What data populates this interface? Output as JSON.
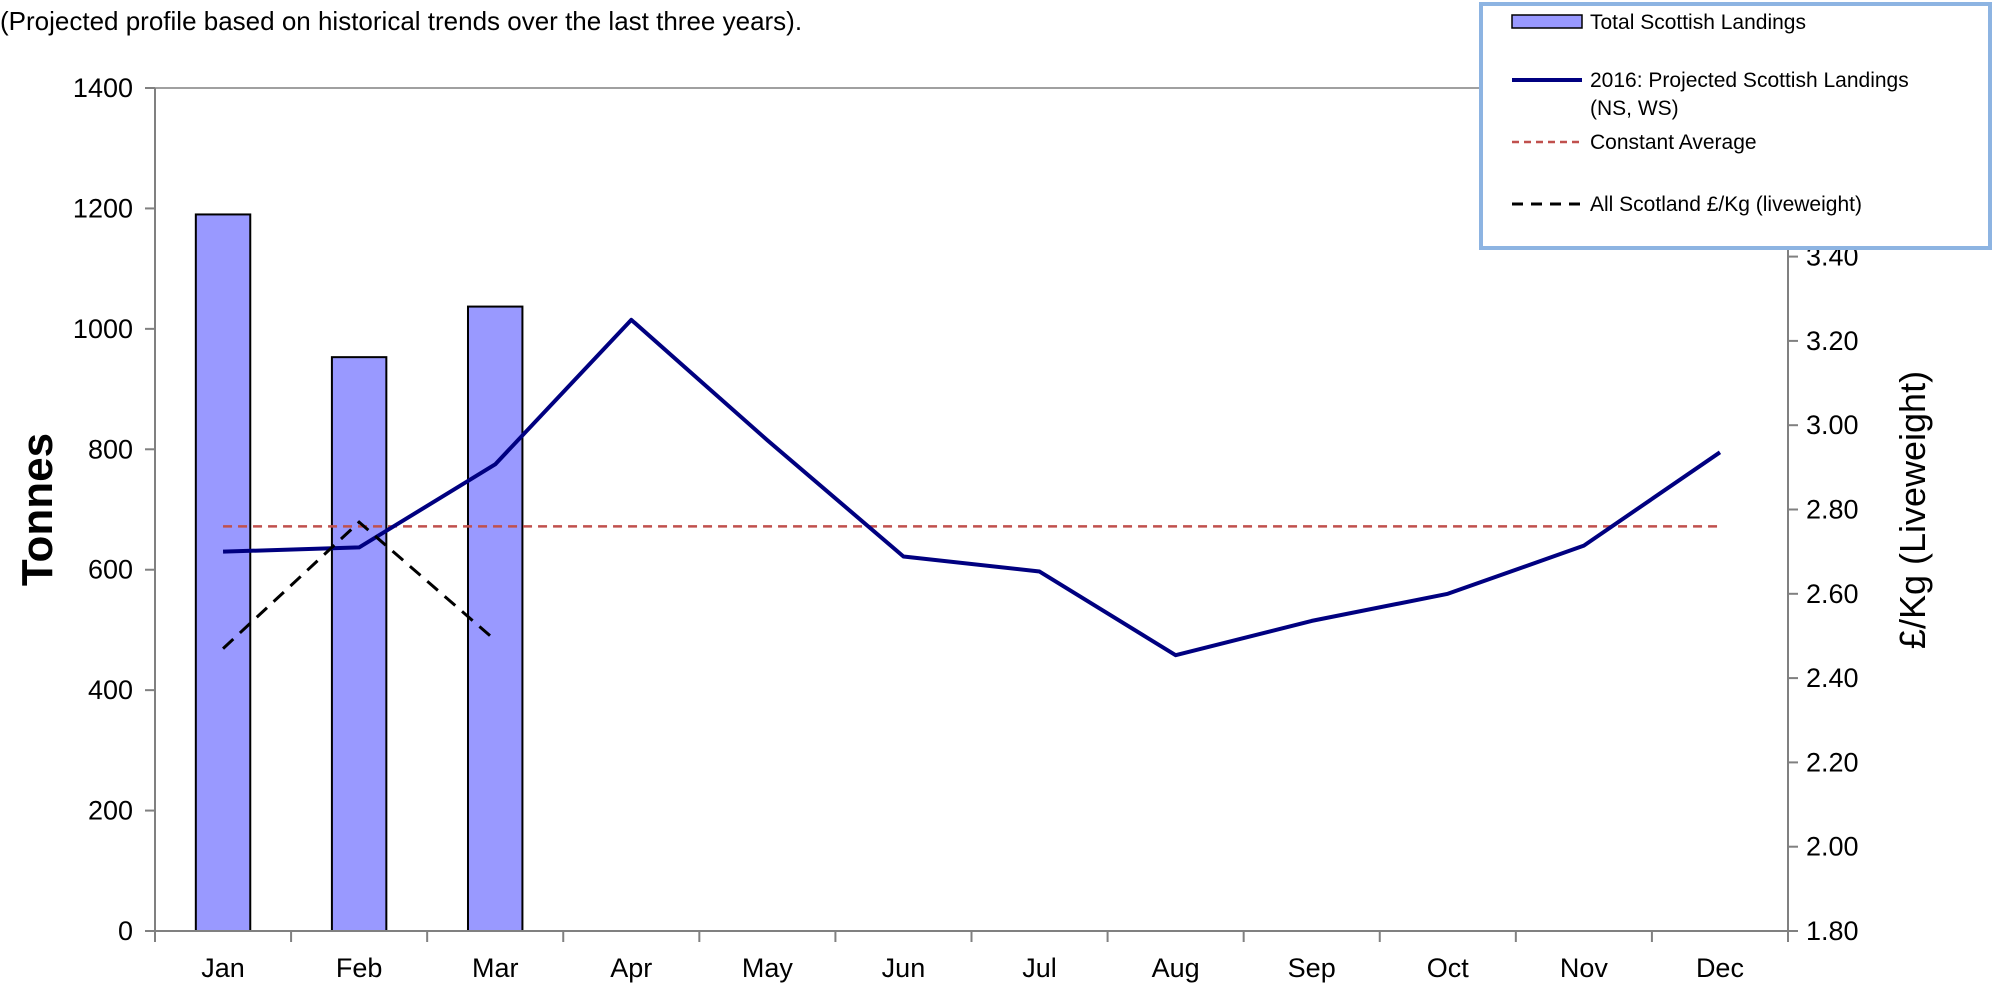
{
  "subtitle": "(Projected profile based on historical trends over the last three years).",
  "chart_data": {
    "type": "bar",
    "title": "",
    "subtitle": "(Projected profile based on historical trends over the last three years).",
    "categories": [
      "Jan",
      "Feb",
      "Mar",
      "Apr",
      "May",
      "Jun",
      "Jul",
      "Aug",
      "Sep",
      "Oct",
      "Nov",
      "Dec"
    ],
    "y_left": {
      "label": "Tonnes",
      "ylim": [
        0,
        1400
      ],
      "ticks": [
        0,
        200,
        400,
        600,
        800,
        1000,
        1200,
        1400
      ]
    },
    "y_right": {
      "label": "£/Kg (Liveweight)",
      "ylim": [
        1.8,
        3.8
      ],
      "ticks": [
        "1.80",
        "2.00",
        "2.20",
        "2.40",
        "2.60",
        "2.80",
        "3.00",
        "3.20",
        "3.40"
      ]
    },
    "series": [
      {
        "name": "Total Scottish Landings",
        "type": "bar",
        "axis": "left",
        "values": [
          1190,
          953,
          1037,
          null,
          null,
          null,
          null,
          null,
          null,
          null,
          null,
          null
        ],
        "color": "#9999ff"
      },
      {
        "name": "2016: Projected Scottish Landings (NS, WS)",
        "type": "line",
        "axis": "left",
        "values": [
          630,
          637,
          775,
          1015,
          815,
          622,
          597,
          458,
          515,
          560,
          640,
          795
        ],
        "color": "#000080"
      },
      {
        "name": "Constant Average",
        "type": "line",
        "style": "dashed",
        "axis": "left",
        "values": [
          672,
          672,
          672,
          672,
          672,
          672,
          672,
          672,
          672,
          672,
          672,
          672
        ],
        "color": "#c0504d"
      },
      {
        "name": "All Scotland £/Kg (liveweight)",
        "type": "line",
        "style": "dashed",
        "axis": "right",
        "values": [
          2.47,
          2.77,
          2.49,
          null,
          null,
          null,
          null,
          null,
          null,
          null,
          null,
          null
        ],
        "color": "#000000"
      }
    ],
    "legend": {
      "position": "top-right",
      "entries": [
        {
          "lines": [
            "Total Scottish Landings"
          ]
        },
        {
          "lines": [
            "2016: Projected Scottish Landings",
            "(NS, WS)"
          ]
        },
        {
          "lines": [
            "Constant Average"
          ]
        },
        {
          "lines": [
            "All Scotland £/Kg (liveweight)"
          ]
        }
      ]
    },
    "grid": false
  }
}
